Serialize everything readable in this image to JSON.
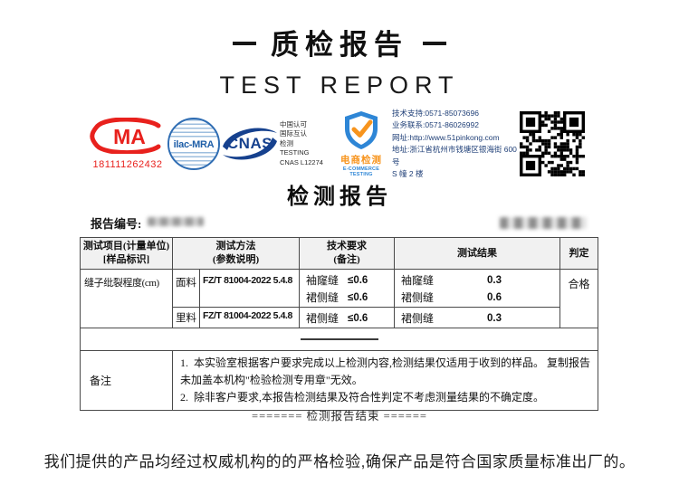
{
  "page": {
    "title_cn": "质检报告",
    "title_en": "TEST REPORT",
    "section_title": "检测报告",
    "report_no_label": "报告编号:",
    "end_line": "======= 检测报告结束 ======",
    "footer": "我们提供的产品均经过权威机构的的严格检验,确保产品是符合国家质量标准出厂的。"
  },
  "logos": {
    "cma": {
      "label": "CMA",
      "letters_inside": "MA",
      "number": "181111262432",
      "color": "#e8211d"
    },
    "ilac": {
      "label": "ilac-MRA",
      "color": "#2f6db3"
    },
    "cnas": {
      "label": "CNAS",
      "color": "#16418e"
    },
    "cnas_lines": [
      "中国认可",
      "国际互认",
      "检测",
      "TESTING",
      "CNAS L12274"
    ],
    "shield": {
      "label_cn": "电商检测",
      "label_en": "E-COMMERCE TESTING",
      "blue": "#2e86d6",
      "orange": "#f7941d"
    }
  },
  "contact": {
    "lines": [
      "技术支持:0571-85073696",
      "业务联系:0571-86026992",
      "网址:http://www.51pinkong.com",
      "地址:浙江省杭州市钱塘区银海街 600 号",
      "S 幢 2 楼"
    ]
  },
  "table": {
    "header": {
      "item_line1": "测试项目(计量单位)",
      "item_line2": "[样品标识]",
      "method_line1": "测试方法",
      "method_line2": "(参数说明)",
      "req_line1": "技术要求",
      "req_line2": "(备注)",
      "result": "测试结果",
      "verdict": "判定"
    },
    "item_name": "缝子纰裂程度(cm)",
    "verdict": "合格",
    "rows": [
      {
        "material": "面料",
        "method": "FZ/T 81004-2022 5.4.8",
        "reqs": [
          {
            "name": "袖窿缝",
            "limit": "≤0.6"
          },
          {
            "name": "裙侧缝",
            "limit": "≤0.6"
          }
        ],
        "results": [
          {
            "name": "袖窿缝",
            "value": "0.3"
          },
          {
            "name": "裙侧缝",
            "value": "0.6"
          }
        ]
      },
      {
        "material": "里料",
        "method": "FZ/T 81004-2022 5.4.8",
        "reqs": [
          {
            "name": "裙侧缝",
            "limit": "≤0.6"
          }
        ],
        "results": [
          {
            "name": "裙侧缝",
            "value": "0.3"
          }
        ]
      }
    ],
    "remark_label": "备注",
    "remarks": [
      "1.  本实验室根据客户要求完成以上检测内容,检测结果仅适用于收到的样品。 复制报告未加盖本机构\"检验检测专用章\"无效。",
      "2.  除非客户要求,本报告检测结果及符合性判定不考虑测量结果的不确定度。"
    ]
  }
}
